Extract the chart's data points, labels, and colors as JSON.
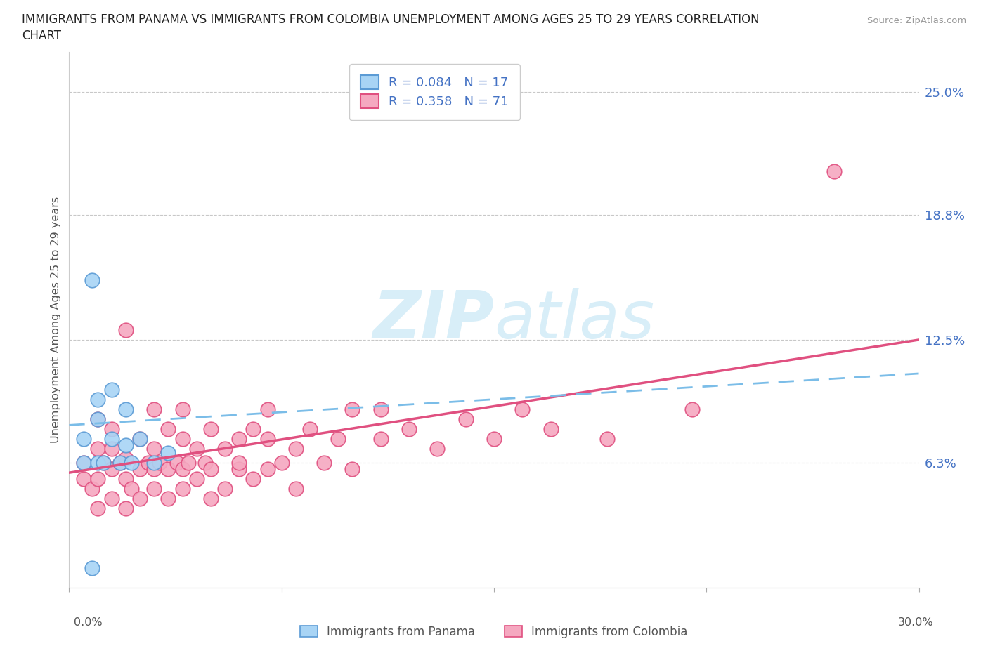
{
  "title_line1": "IMMIGRANTS FROM PANAMA VS IMMIGRANTS FROM COLOMBIA UNEMPLOYMENT AMONG AGES 25 TO 29 YEARS CORRELATION",
  "title_line2": "CHART",
  "source_text": "Source: ZipAtlas.com",
  "ylabel": "Unemployment Among Ages 25 to 29 years",
  "ytick_labels": [
    "6.3%",
    "12.5%",
    "18.8%",
    "25.0%"
  ],
  "ytick_values": [
    0.063,
    0.125,
    0.188,
    0.25
  ],
  "xmin": 0.0,
  "xmax": 0.3,
  "ymin": 0.0,
  "ymax": 0.27,
  "r_panama": 0.084,
  "n_panama": 17,
  "r_colombia": 0.358,
  "n_colombia": 71,
  "panama_color": "#A8D4F5",
  "colombia_color": "#F5A8C0",
  "panama_edge_color": "#5B9BD5",
  "colombia_edge_color": "#E05080",
  "panama_line_color": "#5B9BD5",
  "colombia_line_color": "#E05080",
  "dashed_line_color": "#7BBDE8",
  "watermark_color": "#D8EEF8",
  "grid_color": "#C8C8C8",
  "background_color": "#FFFFFF",
  "panama_x": [
    0.005,
    0.005,
    0.008,
    0.01,
    0.01,
    0.01,
    0.012,
    0.015,
    0.015,
    0.018,
    0.02,
    0.02,
    0.022,
    0.025,
    0.03,
    0.035,
    0.008
  ],
  "panama_y": [
    0.063,
    0.075,
    0.155,
    0.063,
    0.085,
    0.095,
    0.063,
    0.075,
    0.1,
    0.063,
    0.072,
    0.09,
    0.063,
    0.075,
    0.063,
    0.068,
    0.01
  ],
  "colombia_x": [
    0.005,
    0.005,
    0.008,
    0.01,
    0.01,
    0.01,
    0.01,
    0.012,
    0.015,
    0.015,
    0.015,
    0.015,
    0.018,
    0.02,
    0.02,
    0.02,
    0.02,
    0.022,
    0.025,
    0.025,
    0.025,
    0.028,
    0.03,
    0.03,
    0.03,
    0.03,
    0.032,
    0.035,
    0.035,
    0.035,
    0.038,
    0.04,
    0.04,
    0.04,
    0.04,
    0.042,
    0.045,
    0.045,
    0.048,
    0.05,
    0.05,
    0.05,
    0.055,
    0.055,
    0.06,
    0.06,
    0.06,
    0.065,
    0.065,
    0.07,
    0.07,
    0.07,
    0.075,
    0.08,
    0.08,
    0.085,
    0.09,
    0.095,
    0.1,
    0.1,
    0.11,
    0.11,
    0.12,
    0.13,
    0.14,
    0.15,
    0.16,
    0.17,
    0.19,
    0.22,
    0.27
  ],
  "colombia_y": [
    0.063,
    0.055,
    0.05,
    0.04,
    0.055,
    0.07,
    0.085,
    0.063,
    0.045,
    0.06,
    0.07,
    0.08,
    0.063,
    0.04,
    0.055,
    0.065,
    0.13,
    0.05,
    0.045,
    0.06,
    0.075,
    0.063,
    0.05,
    0.06,
    0.07,
    0.09,
    0.063,
    0.045,
    0.06,
    0.08,
    0.063,
    0.05,
    0.06,
    0.075,
    0.09,
    0.063,
    0.055,
    0.07,
    0.063,
    0.045,
    0.06,
    0.08,
    0.05,
    0.07,
    0.06,
    0.075,
    0.063,
    0.055,
    0.08,
    0.06,
    0.075,
    0.09,
    0.063,
    0.07,
    0.05,
    0.08,
    0.063,
    0.075,
    0.06,
    0.09,
    0.075,
    0.09,
    0.08,
    0.07,
    0.085,
    0.075,
    0.09,
    0.08,
    0.075,
    0.09,
    0.21
  ],
  "pan_line_x": [
    0.0,
    0.3
  ],
  "pan_line_y": [
    0.082,
    0.108
  ],
  "col_line_x": [
    0.0,
    0.3
  ],
  "col_line_y": [
    0.058,
    0.125
  ]
}
